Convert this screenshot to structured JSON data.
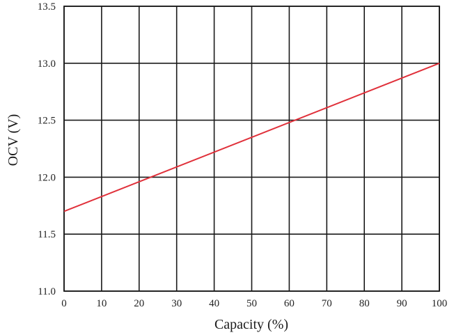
{
  "chart_data": {
    "type": "line",
    "title": "",
    "xlabel": "Capacity (%)",
    "ylabel": "OCV (V)",
    "xlim": [
      0,
      100
    ],
    "ylim": [
      11.0,
      13.5
    ],
    "x_ticks": [
      "0",
      "10",
      "20",
      "30",
      "40",
      "50",
      "60",
      "70",
      "80",
      "90",
      "100"
    ],
    "y_ticks": [
      "11.0",
      "11.5",
      "12.0",
      "12.5",
      "13.0",
      "13.5"
    ],
    "grid": true,
    "series": [
      {
        "color": "#e0303a",
        "x": [
          0,
          100
        ],
        "y": [
          11.7,
          13.0
        ]
      }
    ],
    "colors": {
      "grid": "#1a1a1a",
      "line": "#e0303a"
    }
  }
}
